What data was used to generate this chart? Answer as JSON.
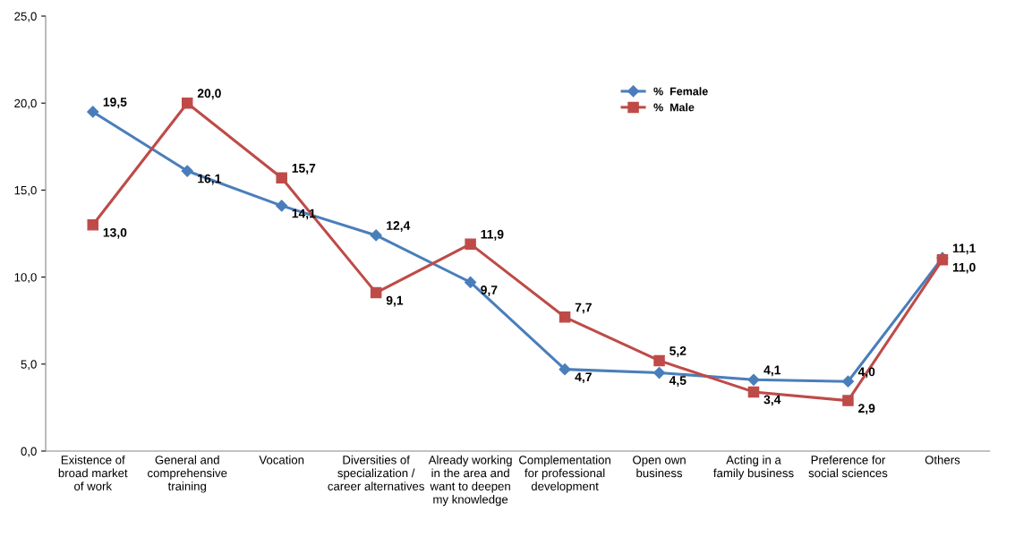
{
  "chart_data": {
    "type": "line",
    "categories": [
      "Existence of\nbroad market\nof work",
      "General and\ncomprehensive\ntraining",
      "Vocation",
      "Diversities of\nspecialization /\ncareer alternatives",
      "Already working\nin the area and\nwant to deepen\nmy knowledge",
      "Complementation\nfor professional\ndevelopment",
      "Open own\nbusiness",
      "Acting in a\nfamily business",
      "Preference for\nsocial sciences",
      "Others"
    ],
    "series": [
      {
        "name": "%  Female",
        "color": "#4a7ebb",
        "marker": "diamond",
        "values": [
          19.5,
          16.1,
          14.1,
          12.4,
          9.7,
          4.7,
          4.5,
          4.1,
          4.0,
          11.1
        ],
        "value_labels": [
          "19,5",
          "16,1",
          "14,1",
          "12,4",
          "9,7",
          "4,7",
          "4,5",
          "4,1",
          "4,0",
          "11,1"
        ]
      },
      {
        "name": "%  Male",
        "color": "#be4b48",
        "marker": "square",
        "values": [
          13.0,
          20.0,
          15.7,
          9.1,
          11.9,
          7.7,
          5.2,
          3.4,
          2.9,
          11.0
        ],
        "value_labels": [
          "13,0",
          "20,0",
          "15,7",
          "9,1",
          "11,9",
          "7,7",
          "5,2",
          "3,4",
          "2,9",
          "11,0"
        ]
      }
    ],
    "ylim": [
      0,
      25
    ],
    "yticks": [
      {
        "value": 0,
        "label": "0,0"
      },
      {
        "value": 5,
        "label": "5,0"
      },
      {
        "value": 10,
        "label": "10,0"
      },
      {
        "value": 15,
        "label": "15,0"
      },
      {
        "value": 20,
        "label": "20,0"
      },
      {
        "value": 25,
        "label": "25,0"
      }
    ],
    "grid": false,
    "legend": "top",
    "line_style": "solid"
  }
}
